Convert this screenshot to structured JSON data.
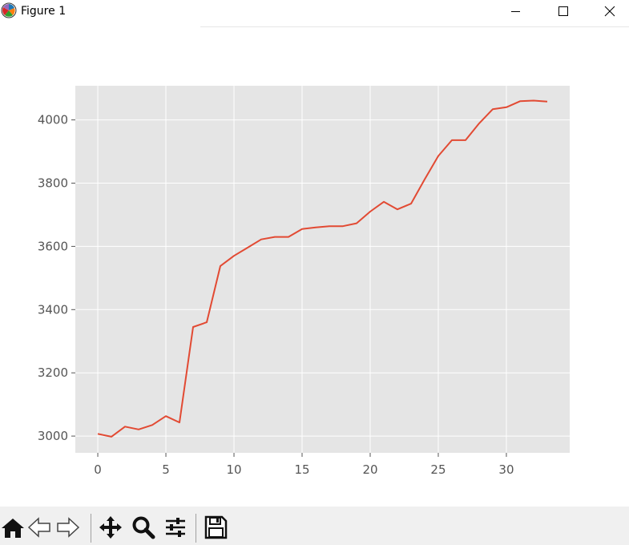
{
  "window": {
    "title": "Figure 1"
  },
  "chart_data": {
    "type": "line",
    "title": "",
    "xlabel": "",
    "ylabel": "",
    "xlim": [
      -1.65,
      34.65
    ],
    "ylim": [
      2947,
      4108
    ],
    "xticks": [
      0,
      5,
      10,
      15,
      20,
      25,
      30
    ],
    "yticks": [
      3000,
      3200,
      3400,
      3600,
      3800,
      4000
    ],
    "grid": true,
    "colors": {
      "line": "#e24a33",
      "plot_bg": "#e5e5e5",
      "grid": "#ffffff",
      "tick_label": "#555555"
    },
    "x": [
      0,
      1,
      2,
      3,
      4,
      5,
      6,
      7,
      8,
      9,
      10,
      11,
      12,
      13,
      14,
      15,
      16,
      17,
      18,
      19,
      20,
      21,
      22,
      23,
      24,
      25,
      26,
      27,
      28,
      29,
      30,
      31,
      32,
      33
    ],
    "y": [
      3007,
      2998,
      3030,
      3021,
      3035,
      3063,
      3043,
      3345,
      3360,
      3538,
      3570,
      3596,
      3622,
      3630,
      3630,
      3655,
      3660,
      3664,
      3664,
      3673,
      3710,
      3741,
      3717,
      3735,
      3812,
      3886,
      3936,
      3936,
      3989,
      4034,
      4040,
      4059,
      4061,
      4058
    ]
  },
  "toolbar": {
    "icons": [
      "home-icon",
      "back-arrow-icon",
      "forward-arrow-icon",
      "pan-icon",
      "zoom-icon",
      "configure-subplots-icon",
      "save-icon"
    ]
  }
}
